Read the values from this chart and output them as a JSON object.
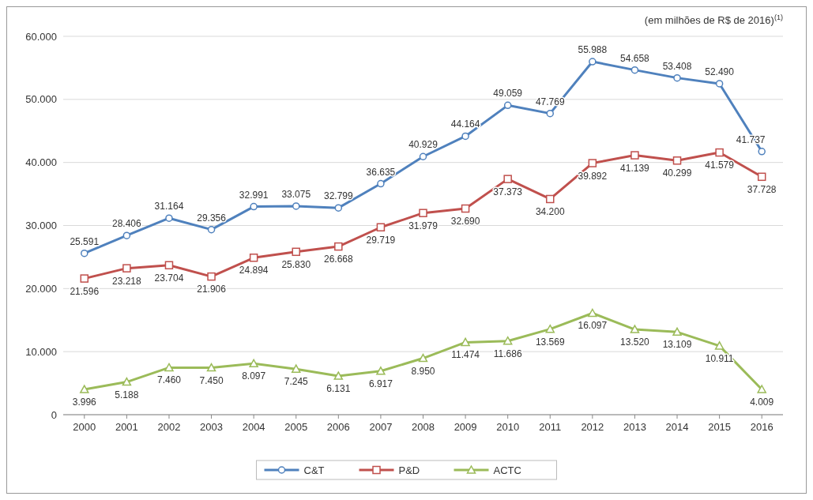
{
  "chart_data": {
    "type": "line",
    "categories": [
      "2000",
      "2001",
      "2002",
      "2003",
      "2004",
      "2005",
      "2006",
      "2007",
      "2008",
      "2009",
      "2010",
      "2011",
      "2012",
      "2013",
      "2014",
      "2015",
      "2016"
    ],
    "annotations": [
      "(em milhões de R$ de 2016)$^{(1)}$"
    ],
    "ylim": [
      0,
      60000
    ],
    "yticks": [
      0,
      {
        "value": 10000,
        "label": "10.000"
      },
      {
        "value": 20000,
        "label": "20.000"
      },
      {
        "value": 30000,
        "label": "30.000"
      },
      {
        "value": 40000,
        "label": "40.000"
      },
      {
        "value": 50000,
        "label": "50.000"
      },
      {
        "value": 60000,
        "label": "60.000"
      }
    ],
    "grid": "y",
    "legend": "bottom",
    "series": [
      {
        "name": "C&T",
        "color": "#4f81bd",
        "marker": "circle",
        "values": [
          25591,
          28406,
          31164,
          29356,
          32991,
          33075,
          32799,
          36635,
          40929,
          44164,
          49059,
          47769,
          55988,
          54658,
          53408,
          52490,
          41737
        ],
        "value_labels": [
          "25.591",
          "28.406",
          "31.164",
          "29.356",
          "32.991",
          "33.075",
          "32.799",
          "36.635",
          "40.929",
          "44.164",
          "49.059",
          "47.769",
          "55.988",
          "54.658",
          "53.408",
          "52.490",
          "41.737"
        ]
      },
      {
        "name": "P&D",
        "color": "#c0504d",
        "marker": "square",
        "values": [
          21596,
          23218,
          23704,
          21906,
          24894,
          25830,
          26668,
          29719,
          31979,
          32690,
          37373,
          34200,
          39892,
          41139,
          40299,
          41579,
          37728
        ],
        "value_labels": [
          "21.596",
          "23.218",
          "23.704",
          "21.906",
          "24.894",
          "25.830",
          "26.668",
          "29.719",
          "31.979",
          "32.690",
          "37.373",
          "34.200",
          "39.892",
          "41.139",
          "40.299",
          "41.579",
          "37.728"
        ]
      },
      {
        "name": "ACTC",
        "color": "#9bbb59",
        "marker": "triangle",
        "values": [
          3996,
          5188,
          7460,
          7450,
          8097,
          7245,
          6131,
          6917,
          8950,
          11474,
          11686,
          13569,
          16097,
          13520,
          13109,
          10911,
          4009
        ],
        "value_labels": [
          "3.996",
          "5.188",
          "7.460",
          "7.450",
          "8.097",
          "7.245",
          "6.131",
          "6.917",
          "8.950",
          "11.474",
          "11.686",
          "13.569",
          "16.097",
          "13.520",
          "13.109",
          "10.911",
          "4.009"
        ]
      }
    ]
  }
}
